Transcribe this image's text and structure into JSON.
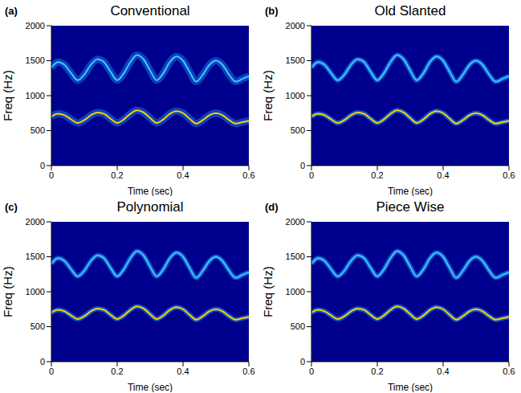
{
  "chart_data": [
    {
      "type": "line",
      "title": "Conventional",
      "label": "(a)",
      "x_label": "Time (sec)",
      "y_label": "Freq (Hz)",
      "x": [
        0,
        0.02,
        0.04,
        0.06,
        0.08,
        0.1,
        0.12,
        0.14,
        0.16,
        0.18,
        0.2,
        0.22,
        0.24,
        0.26,
        0.28,
        0.3,
        0.32,
        0.34,
        0.36,
        0.38,
        0.4,
        0.42,
        0.44,
        0.46,
        0.48,
        0.5,
        0.52,
        0.54,
        0.56,
        0.58,
        0.6
      ],
      "series": [
        {
          "color": "#ffd000",
          "values": [
            700,
            740,
            720,
            660,
            610,
            650,
            720,
            760,
            740,
            670,
            610,
            660,
            740,
            790,
            760,
            680,
            610,
            660,
            740,
            780,
            750,
            670,
            600,
            650,
            720,
            750,
            720,
            650,
            600,
            620,
            640
          ]
        },
        {
          "color": "#40c8ff",
          "values": [
            1400,
            1480,
            1440,
            1320,
            1220,
            1300,
            1440,
            1520,
            1480,
            1340,
            1220,
            1320,
            1480,
            1580,
            1520,
            1360,
            1220,
            1320,
            1480,
            1560,
            1500,
            1340,
            1200,
            1300,
            1440,
            1500,
            1440,
            1300,
            1200,
            1240,
            1280
          ]
        }
      ],
      "xlim": [
        0,
        0.6
      ],
      "xticks": [
        0,
        0.2,
        0.4,
        0.6
      ],
      "ylim": [
        0,
        2000
      ],
      "yticks": [
        0,
        500,
        1000,
        1500,
        2000
      ]
    },
    {
      "type": "line",
      "title": "Old Slanted",
      "label": "(b)",
      "x_label": "Time (sec)",
      "y_label": "Freq (Hz)",
      "x": [
        0,
        0.02,
        0.04,
        0.06,
        0.08,
        0.1,
        0.12,
        0.14,
        0.16,
        0.18,
        0.2,
        0.22,
        0.24,
        0.26,
        0.28,
        0.3,
        0.32,
        0.34,
        0.36,
        0.38,
        0.4,
        0.42,
        0.44,
        0.46,
        0.48,
        0.5,
        0.52,
        0.54,
        0.56,
        0.58,
        0.6
      ],
      "series": [
        {
          "color": "#ffd000",
          "values": [
            700,
            740,
            720,
            660,
            610,
            650,
            720,
            760,
            740,
            670,
            610,
            660,
            740,
            790,
            760,
            680,
            610,
            660,
            740,
            780,
            750,
            670,
            600,
            650,
            720,
            750,
            720,
            650,
            600,
            620,
            640
          ]
        },
        {
          "color": "#40c8ff",
          "values": [
            1400,
            1480,
            1440,
            1320,
            1220,
            1300,
            1440,
            1520,
            1480,
            1340,
            1220,
            1320,
            1480,
            1580,
            1520,
            1360,
            1220,
            1320,
            1480,
            1560,
            1500,
            1340,
            1200,
            1300,
            1440,
            1500,
            1440,
            1300,
            1200,
            1240,
            1280
          ]
        }
      ],
      "xlim": [
        0,
        0.6
      ],
      "xticks": [
        0,
        0.2,
        0.4,
        0.6
      ],
      "ylim": [
        0,
        2000
      ],
      "yticks": [
        0,
        500,
        1000,
        1500,
        2000
      ]
    },
    {
      "type": "line",
      "title": "Polynomial",
      "label": "(c)",
      "x_label": "Time (sec)",
      "y_label": "Freq (Hz)",
      "x": [
        0,
        0.02,
        0.04,
        0.06,
        0.08,
        0.1,
        0.12,
        0.14,
        0.16,
        0.18,
        0.2,
        0.22,
        0.24,
        0.26,
        0.28,
        0.3,
        0.32,
        0.34,
        0.36,
        0.38,
        0.4,
        0.42,
        0.44,
        0.46,
        0.48,
        0.5,
        0.52,
        0.54,
        0.56,
        0.58,
        0.6
      ],
      "series": [
        {
          "color": "#ffd000",
          "values": [
            700,
            740,
            720,
            660,
            610,
            650,
            720,
            760,
            740,
            670,
            610,
            660,
            740,
            790,
            760,
            680,
            610,
            660,
            740,
            780,
            750,
            670,
            600,
            650,
            720,
            750,
            720,
            650,
            600,
            620,
            640
          ]
        },
        {
          "color": "#40c8ff",
          "values": [
            1400,
            1480,
            1440,
            1320,
            1220,
            1300,
            1440,
            1520,
            1480,
            1340,
            1220,
            1320,
            1480,
            1580,
            1520,
            1360,
            1220,
            1320,
            1480,
            1560,
            1500,
            1340,
            1200,
            1300,
            1440,
            1500,
            1440,
            1300,
            1200,
            1240,
            1280
          ]
        }
      ],
      "xlim": [
        0,
        0.6
      ],
      "xticks": [
        0,
        0.2,
        0.4,
        0.6
      ],
      "ylim": [
        0,
        2000
      ],
      "yticks": [
        0,
        500,
        1000,
        1500,
        2000
      ]
    },
    {
      "type": "line",
      "title": "Piece Wise",
      "label": "(d)",
      "x_label": "Time (sec)",
      "y_label": "Freq (Hz)",
      "x": [
        0,
        0.02,
        0.04,
        0.06,
        0.08,
        0.1,
        0.12,
        0.14,
        0.16,
        0.18,
        0.2,
        0.22,
        0.24,
        0.26,
        0.28,
        0.3,
        0.32,
        0.34,
        0.36,
        0.38,
        0.4,
        0.42,
        0.44,
        0.46,
        0.48,
        0.5,
        0.52,
        0.54,
        0.56,
        0.58,
        0.6
      ],
      "series": [
        {
          "color": "#ffd000",
          "values": [
            700,
            740,
            720,
            660,
            610,
            650,
            720,
            760,
            740,
            670,
            610,
            660,
            740,
            790,
            760,
            680,
            610,
            660,
            740,
            780,
            750,
            670,
            600,
            650,
            720,
            750,
            720,
            650,
            600,
            620,
            640
          ]
        },
        {
          "color": "#40c8ff",
          "values": [
            1400,
            1480,
            1440,
            1320,
            1220,
            1300,
            1440,
            1520,
            1480,
            1340,
            1220,
            1320,
            1480,
            1580,
            1520,
            1360,
            1220,
            1320,
            1480,
            1560,
            1500,
            1340,
            1200,
            1300,
            1440,
            1500,
            1440,
            1300,
            1200,
            1240,
            1280
          ]
        }
      ],
      "xlim": [
        0,
        0.6
      ],
      "xticks": [
        0,
        0.2,
        0.4,
        0.6
      ],
      "ylim": [
        0,
        2000
      ],
      "yticks": [
        0,
        500,
        1000,
        1500,
        2000
      ]
    }
  ]
}
